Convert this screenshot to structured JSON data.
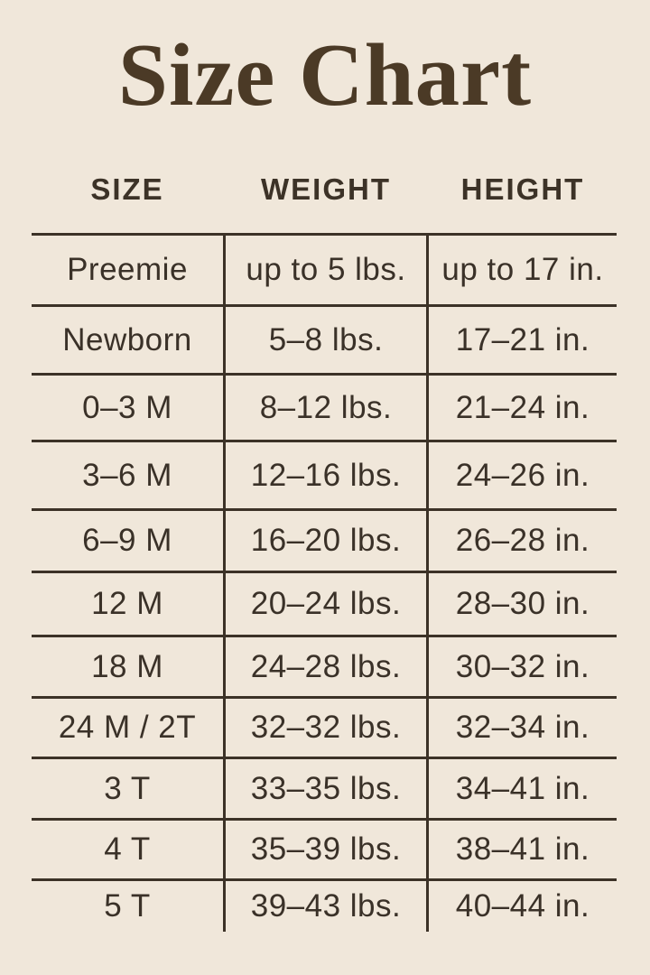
{
  "colors": {
    "background": "#f0e7da",
    "title": "#4b3a26",
    "text": "#3a3128",
    "lines": "#3c3227"
  },
  "chart_data": {
    "type": "table",
    "title": "Size Chart",
    "columns": [
      "SIZE",
      "WEIGHT",
      "HEIGHT"
    ],
    "rows": [
      [
        "Preemie",
        "up to 5 lbs.",
        "up to 17 in."
      ],
      [
        "Newborn",
        "5–8 lbs.",
        "17–21 in."
      ],
      [
        "0–3 M",
        "8–12 lbs.",
        "21–24 in."
      ],
      [
        "3–6 M",
        "12–16 lbs.",
        "24–26 in."
      ],
      [
        "6–9 M",
        "16–20 lbs.",
        "26–28 in."
      ],
      [
        "12 M",
        "20–24 lbs.",
        "28–30 in."
      ],
      [
        "18 M",
        "24–28 lbs.",
        "30–32 in."
      ],
      [
        "24 M / 2T",
        "32–32 lbs.",
        "32–34 in."
      ],
      [
        "3 T",
        "33–35 lbs.",
        "34–41 in."
      ],
      [
        "4 T",
        "35–39 lbs.",
        "38–41 in."
      ],
      [
        "5 T",
        "39–43 lbs.",
        "40–44 in."
      ]
    ]
  }
}
